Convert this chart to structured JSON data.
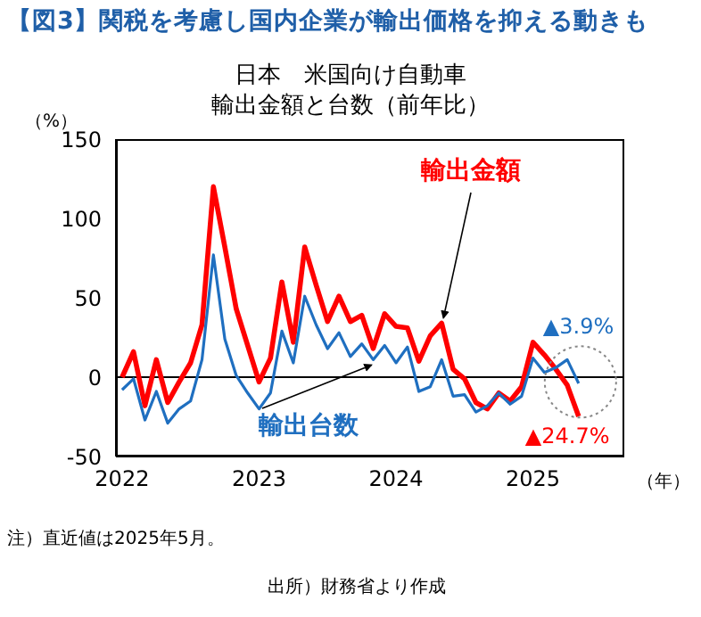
{
  "chart_data": {
    "type": "line",
    "title": "日本　米国向け自動車",
    "subtitle": "輸出金額と台数（前年比）",
    "ylabel": "（%）",
    "xlabel": "（年）",
    "x": [
      "2022-01",
      "2022-02",
      "2022-03",
      "2022-04",
      "2022-05",
      "2022-06",
      "2022-07",
      "2022-08",
      "2022-09",
      "2022-10",
      "2022-11",
      "2022-12",
      "2023-01",
      "2023-02",
      "2023-03",
      "2023-04",
      "2023-05",
      "2023-06",
      "2023-07",
      "2023-08",
      "2023-09",
      "2023-10",
      "2023-11",
      "2023-12",
      "2024-01",
      "2024-02",
      "2024-03",
      "2024-04",
      "2024-05",
      "2024-06",
      "2024-07",
      "2024-08",
      "2024-09",
      "2024-10",
      "2024-11",
      "2024-12",
      "2025-01",
      "2025-02",
      "2025-03",
      "2025-04",
      "2025-05"
    ],
    "series": [
      {
        "name": "輸出金額",
        "color": "#ff0000",
        "values": [
          0,
          16,
          -18,
          11,
          -16,
          -3,
          9,
          33,
          120,
          82,
          43,
          20,
          -3,
          12,
          60,
          22,
          82,
          58,
          35,
          51,
          35,
          39,
          18,
          40,
          32,
          31,
          10,
          26,
          34,
          5,
          -1,
          -16,
          -20,
          -10,
          -15,
          -6,
          22,
          14,
          5,
          -5,
          -24.7
        ]
      },
      {
        "name": "輸出台数",
        "color": "#1f6fc0",
        "values": [
          -8,
          -1,
          -27,
          -9,
          -29,
          -20,
          -15,
          11,
          77,
          24,
          1,
          -10,
          -20,
          -10,
          29,
          9,
          51,
          33,
          18,
          28,
          13,
          21,
          11,
          20,
          9,
          19,
          -9,
          -6,
          11,
          -12,
          -11,
          -22,
          -18,
          -10,
          -17,
          -12,
          12,
          3,
          6,
          11,
          -3.9
        ]
      }
    ],
    "annotations": [
      {
        "text": "▲3.9%",
        "x": "2025-05",
        "y": -3.9
      },
      {
        "text": "▲24.7%",
        "x": "2025-05",
        "y": -24.7
      },
      "【図3】関税を考慮し国内企業が輸出価格を抑える動きも",
      "注）直近値は2025年5月。",
      "出所）財務省より作成"
    ],
    "ref_lines": [
      {
        "axis": "y",
        "value": 0,
        "color": "#000000"
      }
    ],
    "xlim": [
      "2021-12-15",
      "2025-09"
    ],
    "xticks": [
      {
        "value": "2022",
        "label": "2022"
      },
      {
        "value": "2023",
        "label": "2023"
      },
      {
        "value": "2024",
        "label": "2024"
      },
      {
        "value": "2025",
        "label": "2025"
      }
    ],
    "ylim": [
      -50,
      150
    ],
    "yticks": [
      -50,
      0,
      50,
      100,
      150
    ],
    "grid": false,
    "legend": false,
    "marker": "none",
    "line_style": "solid"
  }
}
